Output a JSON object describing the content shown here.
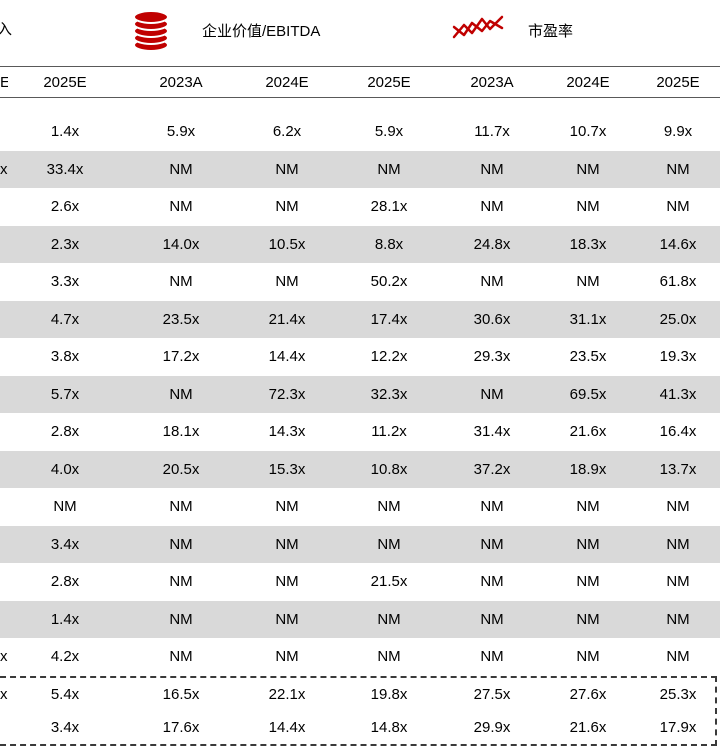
{
  "colors": {
    "accent_red": "#c00000",
    "row_alt_gray": "#d9d9d9",
    "header_line": "#595959",
    "dashed_border": "#3a3a3a"
  },
  "legend": {
    "clipped_label": "入",
    "groups": [
      {
        "icon": "coin-stack-icon",
        "label": "企业价值/EBITDA"
      },
      {
        "icon": "line-chart-icon",
        "label": "市盈率"
      }
    ]
  },
  "chart_data": {
    "type": "table",
    "title": "",
    "notes": "valuation multiples table, left columns clipped at screen edge",
    "clipped_header": "E",
    "headers": [
      "2025E",
      "2023A",
      "2024E",
      "2025E",
      "2023A",
      "2024E",
      "2025E"
    ],
    "header_groups": [
      "EV/EBITDA (2023A-2025E)",
      "P/E (2023A-2025E)"
    ],
    "rows": [
      {
        "clipped": "",
        "cells": [
          "1.4x",
          "5.9x",
          "6.2x",
          "5.9x",
          "11.7x",
          "10.7x",
          "9.9x"
        ]
      },
      {
        "clipped": "x",
        "cells": [
          "33.4x",
          "NM",
          "NM",
          "NM",
          "NM",
          "NM",
          "NM"
        ]
      },
      {
        "clipped": "",
        "cells": [
          "2.6x",
          "NM",
          "NM",
          "28.1x",
          "NM",
          "NM",
          "NM"
        ]
      },
      {
        "clipped": "",
        "cells": [
          "2.3x",
          "14.0x",
          "10.5x",
          "8.8x",
          "24.8x",
          "18.3x",
          "14.6x"
        ]
      },
      {
        "clipped": "",
        "cells": [
          "3.3x",
          "NM",
          "NM",
          "50.2x",
          "NM",
          "NM",
          "61.8x"
        ]
      },
      {
        "clipped": "",
        "cells": [
          "4.7x",
          "23.5x",
          "21.4x",
          "17.4x",
          "30.6x",
          "31.1x",
          "25.0x"
        ]
      },
      {
        "clipped": "",
        "cells": [
          "3.8x",
          "17.2x",
          "14.4x",
          "12.2x",
          "29.3x",
          "23.5x",
          "19.3x"
        ]
      },
      {
        "clipped": "",
        "cells": [
          "5.7x",
          "NM",
          "72.3x",
          "32.3x",
          "NM",
          "69.5x",
          "41.3x"
        ]
      },
      {
        "clipped": "",
        "cells": [
          "2.8x",
          "18.1x",
          "14.3x",
          "11.2x",
          "31.4x",
          "21.6x",
          "16.4x"
        ]
      },
      {
        "clipped": "",
        "cells": [
          "4.0x",
          "20.5x",
          "15.3x",
          "10.8x",
          "37.2x",
          "18.9x",
          "13.7x"
        ]
      },
      {
        "clipped": "",
        "cells": [
          "NM",
          "NM",
          "NM",
          "NM",
          "NM",
          "NM",
          "NM"
        ]
      },
      {
        "clipped": "",
        "cells": [
          "3.4x",
          "NM",
          "NM",
          "NM",
          "NM",
          "NM",
          "NM"
        ]
      },
      {
        "clipped": "",
        "cells": [
          "2.8x",
          "NM",
          "NM",
          "21.5x",
          "NM",
          "NM",
          "NM"
        ]
      },
      {
        "clipped": "",
        "cells": [
          "1.4x",
          "NM",
          "NM",
          "NM",
          "NM",
          "NM",
          "NM"
        ]
      },
      {
        "clipped": "x",
        "cells": [
          "4.2x",
          "NM",
          "NM",
          "NM",
          "NM",
          "NM",
          "NM"
        ]
      }
    ],
    "summary_rows": [
      {
        "clipped": "x",
        "cells": [
          "5.4x",
          "16.5x",
          "22.1x",
          "19.8x",
          "27.5x",
          "27.6x",
          "25.3x"
        ]
      },
      {
        "clipped": "",
        "cells": [
          "3.4x",
          "17.6x",
          "14.4x",
          "14.8x",
          "29.9x",
          "21.6x",
          "17.9x"
        ]
      }
    ]
  }
}
